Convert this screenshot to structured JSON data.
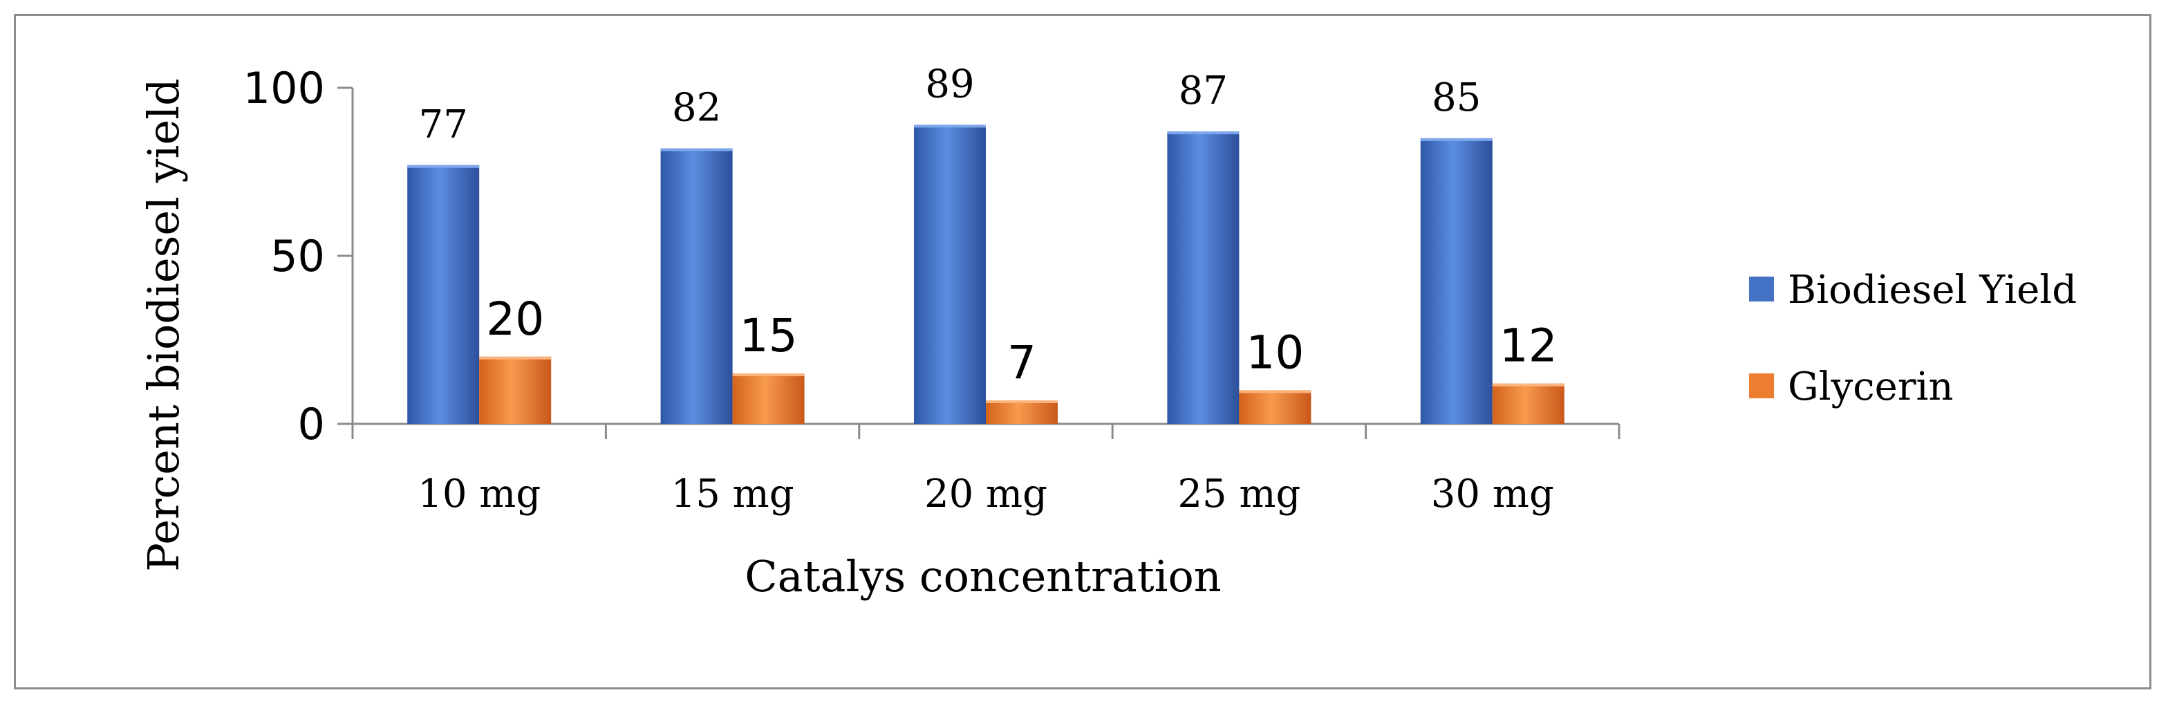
{
  "chart_data": {
    "type": "bar",
    "categories": [
      "10 mg",
      "15 mg",
      "20 mg",
      "25 mg",
      "30 mg"
    ],
    "series": [
      {
        "name": "Biodiesel Yield",
        "values": [
          77,
          82,
          89,
          87,
          85
        ],
        "color": "#4472c4"
      },
      {
        "name": "Glycerin",
        "values": [
          20,
          15,
          7,
          10,
          12
        ],
        "color": "#ed7d31"
      }
    ],
    "xlabel": "Catalys concentration",
    "ylabel": "Percent biodiesel yield",
    "ylim": [
      0,
      100
    ],
    "yticks": [
      0,
      50,
      100
    ],
    "legend_position": "right"
  }
}
